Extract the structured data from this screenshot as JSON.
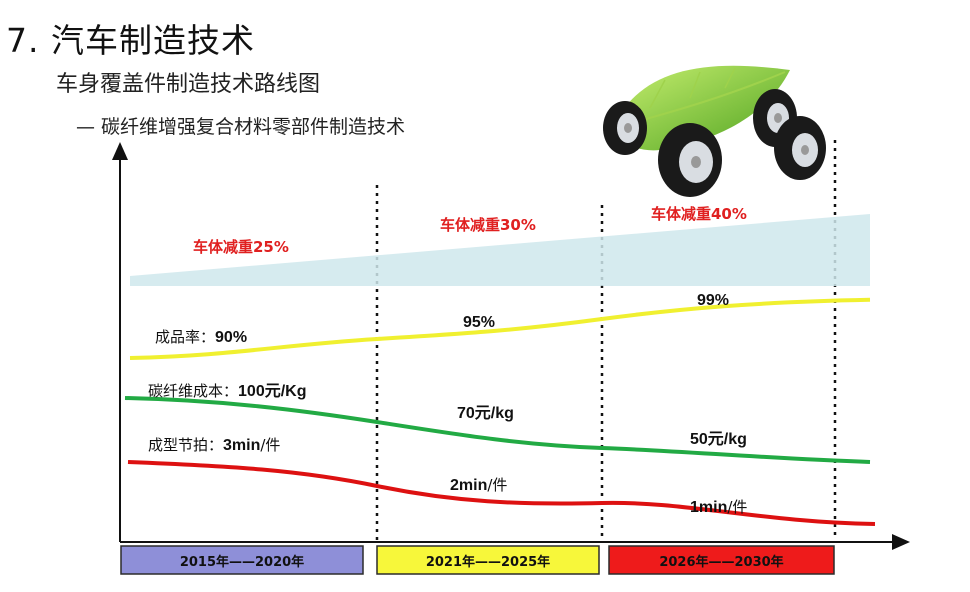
{
  "title": "7. 汽车制造技术",
  "subtitle": "车身覆盖件制造技术路线图",
  "subsubtitle": "— 碳纤维增强复合材料零部件制造技术",
  "colors": {
    "yield": "#f0f030",
    "cost": "#22aa44",
    "cycle": "#dd1111",
    "weight_band": "#cfe8ec",
    "weight_text": "#e02020",
    "period1": "#8e8fd8",
    "period2": "#f7f73a",
    "period3": "#ee1b1b"
  },
  "icons": {
    "car": "green-leaf-car-icon"
  },
  "chart_data": {
    "type": "line",
    "categories": [
      "2015年——2020年",
      "2021年——2025年",
      "2026年——2030年"
    ],
    "series": [
      {
        "name": "成品率",
        "values": [
          90,
          95,
          99
        ],
        "unit": "%"
      },
      {
        "name": "碳纤维成本",
        "values": [
          100,
          70,
          50
        ],
        "unit": "元/Kg"
      },
      {
        "name": "成型节拍",
        "values": [
          3,
          2,
          1
        ],
        "unit": "min/件"
      }
    ],
    "weight_reduction": [
      {
        "period": "2015年——2020年",
        "label": "车体减重25%",
        "value": 25
      },
      {
        "period": "2021年——2025年",
        "label": "车体减重30%",
        "value": 30
      },
      {
        "period": "2026年——2030年",
        "label": "车体减重40%",
        "value": 40
      }
    ],
    "labels": {
      "yield": [
        {
          "prefix": "成品率：",
          "value": "90%"
        },
        {
          "prefix": "",
          "value": "95%"
        },
        {
          "prefix": "",
          "value": "99%"
        }
      ],
      "cost": [
        {
          "prefix": "碳纤维成本：",
          "value": "100",
          "unit": "元/Kg"
        },
        {
          "prefix": "",
          "value": "70",
          "unit": "元/kg"
        },
        {
          "prefix": "",
          "value": "50",
          "unit": "元/kg"
        }
      ],
      "cycle": [
        {
          "prefix": "成型节拍：",
          "value": "3min",
          "unit": "/件"
        },
        {
          "prefix": "",
          "value": "2min",
          "unit": "/件"
        },
        {
          "prefix": "",
          "value": "1min",
          "unit": "/件"
        }
      ]
    }
  }
}
